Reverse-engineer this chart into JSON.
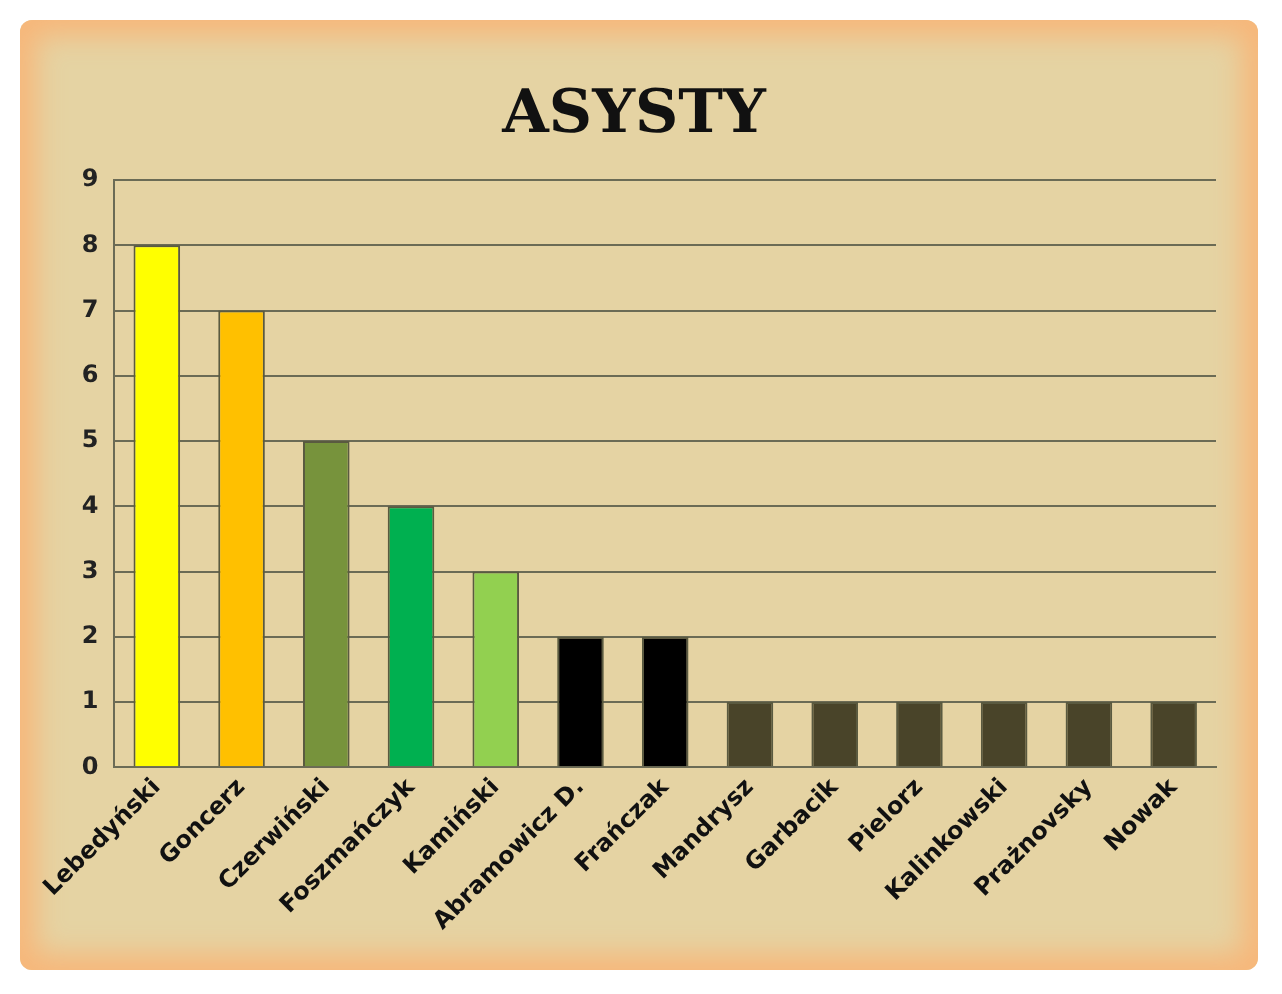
{
  "chart_data": {
    "type": "bar",
    "title": "ASYSTY",
    "categories": [
      "Lebedyński",
      "Goncerz",
      "Czerwiński",
      "Foszmańczyk",
      "Kamiński",
      "Abramowicz D.",
      "Frańczak",
      "Mandrysz",
      "Garbacik",
      "Pielorz",
      "Kalinkowski",
      "Prażnovsky",
      "Nowak"
    ],
    "values": [
      8,
      7,
      5,
      4,
      3,
      2,
      2,
      1,
      1,
      1,
      1,
      1,
      1
    ],
    "colors": [
      "#ffff00",
      "#ffc000",
      "#77933c",
      "#00b050",
      "#92d050",
      "#000000",
      "#000000",
      "#494429",
      "#494429",
      "#494429",
      "#494429",
      "#494429",
      "#494429"
    ],
    "ylim": [
      0,
      9
    ],
    "yticks": [
      0,
      1,
      2,
      3,
      4,
      5,
      6,
      7,
      8,
      9
    ],
    "grid": "y",
    "legend": false
  }
}
